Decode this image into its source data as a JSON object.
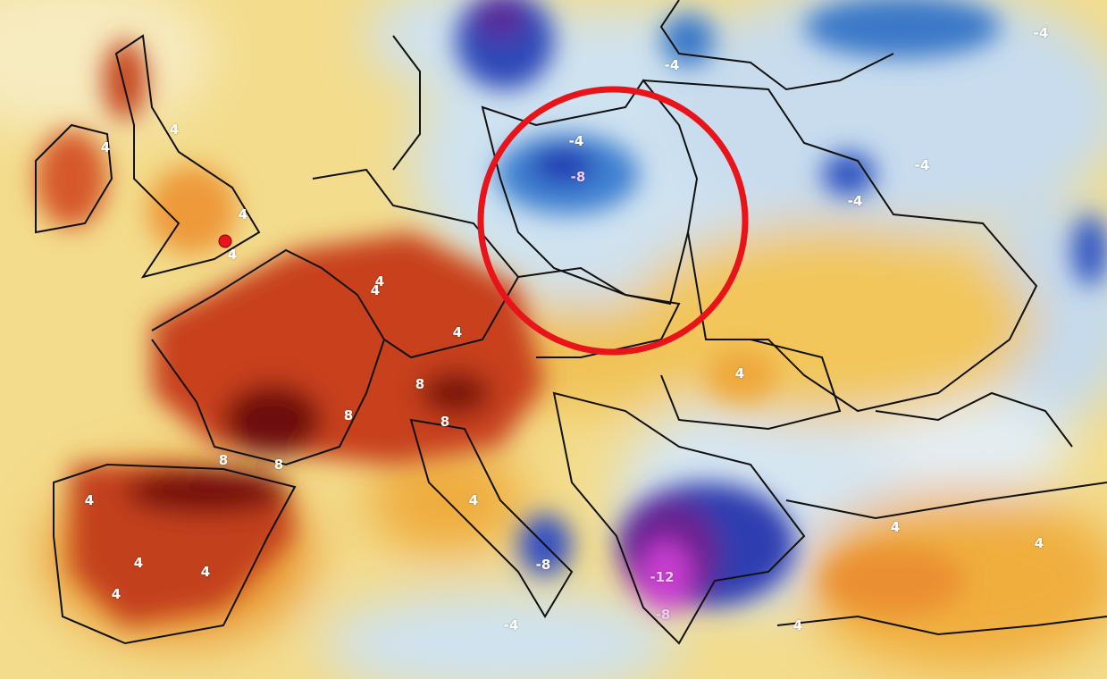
{
  "map": {
    "type": "temperature anomaly map",
    "colors": {
      "warm_pale": "#f3dc8c",
      "warm_orange": "#ee9a3a",
      "warm_red": "#c8401c",
      "warm_darkred": "#6e0f0f",
      "cold_pale": "#d2e5f1",
      "cold_blue": "#3d7fd0",
      "cold_darkblue": "#2434b0",
      "cold_purple": "#6a2090",
      "cold_magenta": "#c83cd0",
      "highlight_circle": "#e8141a",
      "marker_dot": "#e8141a"
    },
    "contour_labels": [
      "-4",
      "-8",
      "-4",
      "-4",
      "-4",
      "-4",
      "4",
      "4",
      "4",
      "4",
      "4",
      "4",
      "8",
      "8",
      "8",
      "8",
      "8",
      "4",
      "4",
      "4",
      "4",
      "4",
      "4",
      "-12",
      "-8",
      "-8",
      "-4",
      "4",
      "4",
      "4",
      "4"
    ],
    "annotations": {
      "highlight": "red circle around Poland",
      "marker": "red dot near London"
    }
  }
}
